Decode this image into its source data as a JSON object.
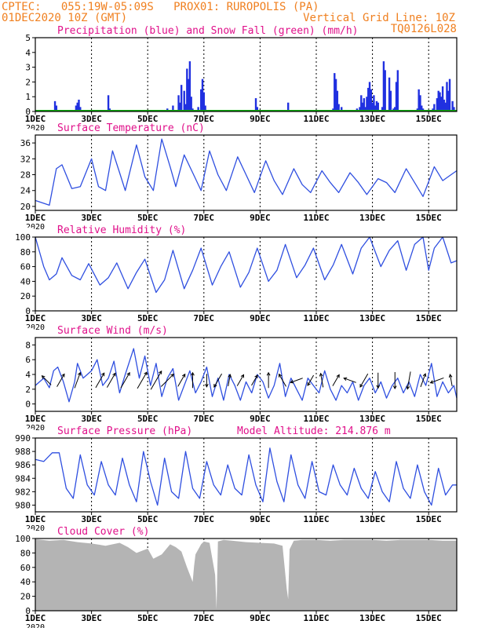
{
  "header": {
    "line1_left": "CPTEC:   055:19W-05:09S   PROX01: RUROPOLIS (PA)",
    "line2_left": "01DEC2020 10Z (GMT)",
    "line2_right": "Vertical Grid Line: 10Z",
    "line3_right": "TQ0126L028"
  },
  "colors": {
    "header": "#f08020",
    "title": "#e0108a",
    "precip": "#2030e0",
    "snow": "#10b010",
    "line": "#2f4fe0",
    "cloud": "#b4b4b4",
    "grid": "#000000"
  },
  "x_axis": {
    "day_start": 1,
    "day_end": 16,
    "tick_labels": [
      "1DEC",
      "3DEC",
      "5DEC",
      "7DEC",
      "9DEC",
      "11DEC",
      "13DEC",
      "15DEC"
    ],
    "tick_days": [
      1,
      3,
      5,
      7,
      9,
      11,
      13,
      15
    ],
    "year_label": "2020"
  },
  "chart_data": [
    {
      "type": "bar",
      "title": "Precipitation (blue) and Snow Fall (green) (mm/h)",
      "ylim": [
        0,
        5
      ],
      "yticks": [
        0,
        1,
        2,
        3,
        4,
        5
      ],
      "series": [
        {
          "name": "Precipitation",
          "x": [
            1.7,
            1.75,
            2.45,
            2.5,
            2.55,
            2.6,
            3.6,
            3.65,
            5.1,
            5.7,
            5.9,
            6.1,
            6.15,
            6.2,
            6.3,
            6.35,
            6.4,
            6.45,
            6.5,
            6.55,
            6.6,
            6.8,
            6.9,
            6.95,
            7.0,
            7.05,
            8.85,
            8.9,
            9.25,
            10.0,
            10.55,
            11.6,
            11.65,
            11.7,
            11.75,
            11.8,
            11.9,
            12.45,
            12.55,
            12.6,
            12.65,
            12.7,
            12.75,
            12.8,
            12.85,
            12.9,
            12.95,
            13.0,
            13.05,
            13.1,
            13.15,
            13.2,
            13.35,
            13.4,
            13.45,
            13.6,
            13.65,
            13.75,
            13.8,
            13.85,
            13.9,
            14.6,
            14.65,
            14.7,
            14.75,
            14.8,
            15.15,
            15.2,
            15.3,
            15.35,
            15.4,
            15.45,
            15.5,
            15.55,
            15.6,
            15.65,
            15.7,
            15.75,
            15.85,
            15.9
          ],
          "values": [
            0.7,
            0.4,
            0.4,
            0.6,
            0.8,
            0.3,
            1.1,
            0.2,
            0.1,
            0.2,
            0.4,
            1.1,
            0.6,
            1.8,
            1.4,
            0.5,
            2.9,
            2.2,
            3.4,
            1.0,
            0.2,
            0.3,
            1.5,
            2.2,
            1.3,
            0.4,
            0.9,
            0.3,
            0.1,
            0.6,
            0.1,
            0.2,
            2.6,
            2.2,
            1.4,
            0.5,
            0.3,
            0.2,
            0.3,
            1.1,
            0.6,
            0.9,
            0.3,
            1.0,
            1.6,
            2.0,
            1.5,
            0.6,
            1.1,
            0.4,
            0.7,
            0.6,
            0.3,
            3.4,
            2.8,
            2.3,
            1.4,
            0.2,
            0.3,
            2.0,
            2.8,
            0.2,
            1.5,
            1.1,
            0.4,
            0.2,
            0.2,
            0.5,
            0.9,
            1.4,
            1.3,
            1.0,
            1.7,
            0.8,
            0.6,
            2.0,
            1.4,
            2.2,
            0.7,
            0.3
          ]
        },
        {
          "name": "Snow Fall",
          "constant": 0
        }
      ]
    },
    {
      "type": "line",
      "title": "Surface Temperature (nC)",
      "ylim": [
        19,
        38
      ],
      "yticks": [
        20,
        24,
        28,
        32,
        36
      ],
      "series": [
        {
          "name": "Temperature",
          "day_offsets": [
            0,
            0.5,
            0.75,
            0.95,
            1.3,
            1.6,
            2.0,
            2.25,
            2.5,
            2.75,
            3.0,
            3.2,
            3.6,
            3.9,
            4.2,
            4.5,
            4.8,
            5.0,
            5.3,
            5.6,
            5.9,
            6.2,
            6.5,
            6.8,
            7.2,
            7.5,
            7.8,
            8.2,
            8.5,
            8.8,
            9.2,
            9.5,
            9.8,
            10.2,
            10.5,
            10.8,
            11.2,
            11.5,
            11.8,
            12.2,
            12.5,
            12.8,
            13.2,
            13.5,
            13.8,
            14.2,
            14.5,
            14.8,
            15.0
          ],
          "values": [
            21.5,
            20.3,
            29.5,
            30.5,
            24.5,
            25.0,
            32.0,
            25.0,
            24.0,
            34.0,
            28.5,
            24.0,
            35.5,
            27.5,
            24.0,
            37.0,
            30.0,
            25.0,
            33.0,
            28.5,
            24.0,
            34.0,
            28.0,
            24.0,
            32.5,
            28.0,
            23.5,
            31.5,
            26.5,
            23.0,
            29.5,
            25.5,
            23.5,
            29.0,
            26.0,
            23.5,
            28.5,
            26.0,
            23.0,
            27.0,
            26.0,
            23.5,
            29.5,
            26.0,
            22.5,
            30.0,
            26.5,
            28.0,
            29.0
          ]
        }
      ]
    },
    {
      "type": "line",
      "title": "Relative Humidity (%)",
      "ylim": [
        0,
        100
      ],
      "yticks": [
        0,
        20,
        40,
        60,
        80,
        100
      ],
      "series": [
        {
          "name": "Relative Humidity",
          "day_offsets": [
            0,
            0.3,
            0.5,
            0.75,
            0.95,
            1.3,
            1.6,
            1.9,
            2.3,
            2.6,
            2.9,
            3.3,
            3.6,
            3.9,
            4.3,
            4.6,
            4.9,
            5.3,
            5.6,
            5.9,
            6.3,
            6.6,
            6.9,
            7.3,
            7.6,
            7.9,
            8.3,
            8.6,
            8.9,
            9.3,
            9.6,
            9.9,
            10.3,
            10.6,
            10.9,
            11.3,
            11.6,
            11.9,
            12.3,
            12.6,
            12.9,
            13.2,
            13.5,
            13.8,
            14.0,
            14.2,
            14.5,
            14.8,
            15.0
          ],
          "values": [
            100,
            60,
            42,
            50,
            72,
            48,
            42,
            64,
            35,
            45,
            65,
            30,
            52,
            70,
            25,
            42,
            82,
            30,
            55,
            85,
            35,
            60,
            80,
            32,
            52,
            85,
            40,
            55,
            90,
            45,
            62,
            85,
            42,
            62,
            90,
            50,
            85,
            100,
            60,
            82,
            95,
            55,
            90,
            100,
            55,
            85,
            100,
            65,
            68
          ]
        }
      ]
    },
    {
      "type": "line",
      "title": "Surface Wind (m/s)",
      "ylim": [
        -1,
        9
      ],
      "yticks": [
        0,
        2,
        4,
        6,
        8
      ],
      "series": [
        {
          "name": "Wind Speed",
          "day_offsets": [
            0,
            0.3,
            0.5,
            0.65,
            0.8,
            1.0,
            1.2,
            1.4,
            1.5,
            1.7,
            2.0,
            2.2,
            2.4,
            2.6,
            2.8,
            3.0,
            3.2,
            3.5,
            3.7,
            3.9,
            4.1,
            4.3,
            4.5,
            4.7,
            4.9,
            5.1,
            5.3,
            5.5,
            5.7,
            5.9,
            6.1,
            6.3,
            6.5,
            6.7,
            6.9,
            7.1,
            7.3,
            7.5,
            7.7,
            7.9,
            8.1,
            8.3,
            8.5,
            8.7,
            8.9,
            9.1,
            9.3,
            9.5,
            9.7,
            9.9,
            10.1,
            10.3,
            10.5,
            10.7,
            10.9,
            11.1,
            11.3,
            11.5,
            11.7,
            11.9,
            12.1,
            12.3,
            12.5,
            12.7,
            12.9,
            13.1,
            13.3,
            13.5,
            13.7,
            13.9,
            14.1,
            14.3,
            14.5,
            14.7,
            14.9,
            15.0
          ],
          "values": [
            2.5,
            3.5,
            2.2,
            4.5,
            5.0,
            3.0,
            0.3,
            3.0,
            5.5,
            3.5,
            4.5,
            6.0,
            2.5,
            3.5,
            5.8,
            1.5,
            4.0,
            7.5,
            3.5,
            6.5,
            2.5,
            5.5,
            1.0,
            3.5,
            4.8,
            0.5,
            2.5,
            4.5,
            1.5,
            3.0,
            5.0,
            1.0,
            3.5,
            0.5,
            4.0,
            2.5,
            0.5,
            3.0,
            1.5,
            4.0,
            3.0,
            0.8,
            2.5,
            5.5,
            1.0,
            3.5,
            2.0,
            0.5,
            3.5,
            2.5,
            1.5,
            4.5,
            2.0,
            0.5,
            2.5,
            1.5,
            3.0,
            0.5,
            2.5,
            3.5,
            1.5,
            3.0,
            0.8,
            2.5,
            3.5,
            1.5,
            3.0,
            1.0,
            4.0,
            2.5,
            5.5,
            1.0,
            3.0,
            1.5,
            2.5,
            0.8
          ]
        }
      ],
      "wind_arrows": {
        "day_offsets": [
          0.4,
          0.9,
          1.5,
          2.3,
          2.7,
          3.2,
          3.8,
          4.3,
          4.7,
          5.2,
          5.6,
          6.1,
          6.5,
          6.9,
          7.3,
          7.8,
          8.3,
          8.8,
          9.3,
          9.8,
          10.2,
          10.7,
          11.2,
          11.7,
          12.2,
          12.8,
          13.3,
          13.8,
          14.3,
          14.8
        ],
        "speeds": [
          3.5,
          4.2,
          5.0,
          5.2,
          5.0,
          5.5,
          6.0,
          7.0,
          5.5,
          4.0,
          4.5,
          3.5,
          4.5,
          3.0,
          3.5,
          3.0,
          4.5,
          4.0,
          3.5,
          3.0,
          4.0,
          3.5,
          3.5,
          4.5,
          4.5,
          5.0,
          5.5,
          4.0,
          4.0,
          3.0
        ],
        "direction_deg": [
          135,
          60,
          70,
          60,
          60,
          60,
          60,
          60,
          45,
          60,
          90,
          270,
          240,
          80,
          60,
          60,
          90,
          120,
          200,
          240,
          100,
          60,
          160,
          240,
          270,
          270,
          260,
          70,
          200,
          100
        ]
      }
    },
    {
      "type": "line",
      "title": "Surface Pressure (hPa)",
      "annotation": "Model Altitude: 214.876 m",
      "ylim": [
        979,
        990
      ],
      "yticks": [
        980,
        982,
        984,
        986,
        988,
        990
      ],
      "series": [
        {
          "name": "Surface Pressure",
          "day_offsets": [
            0,
            0.3,
            0.6,
            0.85,
            1.1,
            1.35,
            1.6,
            1.85,
            2.1,
            2.35,
            2.6,
            2.85,
            3.1,
            3.35,
            3.6,
            3.85,
            4.1,
            4.35,
            4.6,
            4.85,
            5.1,
            5.35,
            5.6,
            5.85,
            6.1,
            6.35,
            6.6,
            6.85,
            7.1,
            7.35,
            7.6,
            7.85,
            8.1,
            8.35,
            8.6,
            8.85,
            9.1,
            9.35,
            9.6,
            9.85,
            10.1,
            10.35,
            10.6,
            10.85,
            11.1,
            11.35,
            11.6,
            11.85,
            12.1,
            12.35,
            12.6,
            12.85,
            13.1,
            13.35,
            13.6,
            13.85,
            14.1,
            14.35,
            14.6,
            14.85,
            15.0
          ],
          "values": [
            986.8,
            986.5,
            987.8,
            987.8,
            982.5,
            981.0,
            987.5,
            983.0,
            981.5,
            986.5,
            983.0,
            981.5,
            987.0,
            983.0,
            980.5,
            988.0,
            983.5,
            980.0,
            987.0,
            982.0,
            981.0,
            988.0,
            982.5,
            981.0,
            986.5,
            983.0,
            981.5,
            986.0,
            982.5,
            981.5,
            987.5,
            983.0,
            980.5,
            988.5,
            983.5,
            980.5,
            987.5,
            983.0,
            981.0,
            986.5,
            982.0,
            981.5,
            986.0,
            983.0,
            981.5,
            985.5,
            982.5,
            981.0,
            985.0,
            982.0,
            980.5,
            986.5,
            982.5,
            981.0,
            986.0,
            982.0,
            980.0,
            985.5,
            981.5,
            983.0,
            983.0
          ]
        }
      ]
    },
    {
      "type": "area",
      "title": "Cloud Cover (%)",
      "ylim": [
        0,
        100
      ],
      "yticks": [
        0,
        20,
        40,
        60,
        80,
        100
      ],
      "series": [
        {
          "name": "Cloud Cover",
          "day_offsets": [
            0,
            0.5,
            1.0,
            1.5,
            2.0,
            2.5,
            3.0,
            3.3,
            3.6,
            4.0,
            4.2,
            4.5,
            4.8,
            5.0,
            5.2,
            5.4,
            5.6,
            5.65,
            5.7,
            5.9,
            6.0,
            6.2,
            6.4,
            6.45,
            6.5,
            6.7,
            7.0,
            7.5,
            8.0,
            8.5,
            8.8,
            8.95,
            9.0,
            9.05,
            9.2,
            9.5,
            10.0,
            10.5,
            11.0,
            11.5,
            12.0,
            12.5,
            13.0,
            13.5,
            14.0,
            14.5,
            15.0
          ],
          "values": [
            99,
            97,
            98,
            95,
            93,
            90,
            94,
            88,
            80,
            86,
            72,
            78,
            92,
            88,
            82,
            60,
            40,
            62,
            78,
            92,
            96,
            94,
            50,
            2,
            96,
            98,
            97,
            95,
            94,
            93,
            90,
            30,
            16,
            85,
            97,
            98,
            98,
            97,
            98,
            98,
            98,
            97,
            98,
            98,
            98,
            97,
            97
          ]
        }
      ]
    }
  ]
}
